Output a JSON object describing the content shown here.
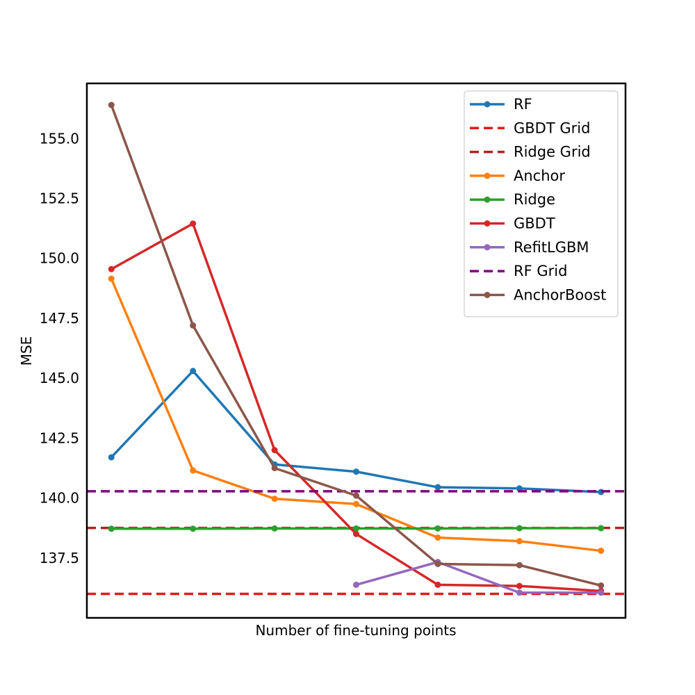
{
  "chart_data": {
    "type": "line",
    "title": "",
    "xlabel": "Number of fine-tuning points",
    "ylabel": "MSE",
    "x_ticks_visible": false,
    "xlim": [
      0.7,
      7.3
    ],
    "ylim": [
      135.0,
      157.3
    ],
    "yticks": [
      137.5,
      140.0,
      142.5,
      145.0,
      147.5,
      150.0,
      152.5,
      155.0
    ],
    "ytick_labels": [
      "137.5",
      "140.0",
      "142.5",
      "145.0",
      "147.5",
      "150.0",
      "152.5",
      "155.0"
    ],
    "grid": false,
    "legend_position": "top-right",
    "legend_order": [
      "RF",
      "GBDT Grid",
      "Ridge Grid",
      "Anchor",
      "Ridge",
      "GBDT",
      "RefitLGBM",
      "RF Grid",
      "AnchorBoost"
    ],
    "series": [
      {
        "name": "RF",
        "color": "#1f77b4",
        "style": "solid-marker",
        "x": [
          1,
          2,
          3,
          4,
          5,
          6,
          7
        ],
        "y": [
          141.7,
          145.3,
          141.4,
          141.1,
          140.45,
          140.4,
          140.25
        ]
      },
      {
        "name": "GBDT Grid",
        "color": "#e41a1c",
        "style": "dashed",
        "y": 136.0
      },
      {
        "name": "Ridge Grid",
        "color": "#b22222",
        "style": "dashed",
        "y": 138.75
      },
      {
        "name": "Anchor",
        "color": "#ff7f0e",
        "style": "solid-marker",
        "x": [
          1,
          2,
          3,
          4,
          5,
          6,
          7
        ],
        "y": [
          149.15,
          141.15,
          139.97,
          139.75,
          138.35,
          138.2,
          137.8
        ]
      },
      {
        "name": "Ridge",
        "color": "#2ca02c",
        "style": "solid-marker",
        "x": [
          1,
          2,
          3,
          4,
          5,
          6,
          7
        ],
        "y": [
          138.72,
          138.72,
          138.73,
          138.73,
          138.73,
          138.74,
          138.74
        ]
      },
      {
        "name": "GBDT",
        "color": "#d62728",
        "style": "solid-marker",
        "x": [
          1,
          2,
          3,
          4,
          5,
          6,
          7
        ],
        "y": [
          149.55,
          151.45,
          142.0,
          138.5,
          136.38,
          136.33,
          136.12
        ]
      },
      {
        "name": "RefitLGBM",
        "color": "#9467bd",
        "style": "solid-marker",
        "x": [
          4,
          5,
          6,
          7
        ],
        "y": [
          136.38,
          137.33,
          136.05,
          136.05
        ]
      },
      {
        "name": "RF Grid",
        "color": "#800080",
        "style": "dashed",
        "y": 140.28
      },
      {
        "name": "AnchorBoost",
        "color": "#8c564b",
        "style": "solid-marker",
        "x": [
          1,
          2,
          3,
          4,
          5,
          6,
          7
        ],
        "y": [
          156.4,
          147.2,
          141.25,
          140.1,
          137.25,
          137.2,
          136.35
        ]
      }
    ]
  }
}
